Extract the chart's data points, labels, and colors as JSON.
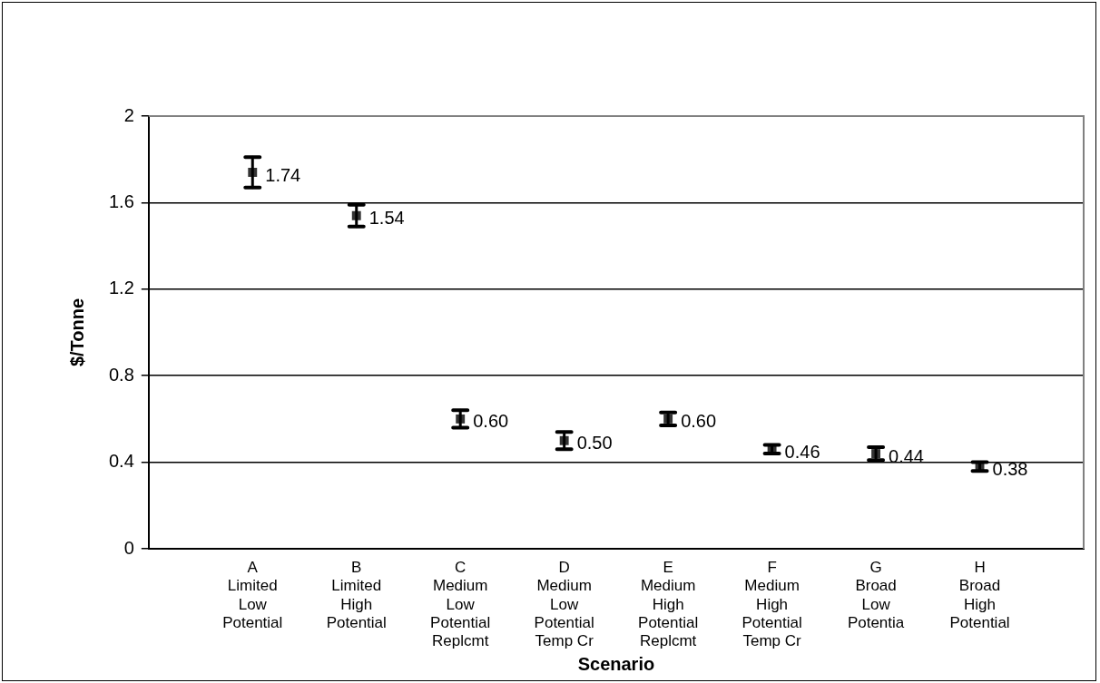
{
  "chart_data": {
    "type": "scatter",
    "xlabel": "Scenario",
    "ylabel": "$/Tonne",
    "categories": [
      "A\nLimited\nLow\nPotential",
      "B\nLimited\nHigh\nPotential",
      "C\nMedium\nLow\nPotential\nReplcmt",
      "D\nMedium\nLow\nPotential\nTemp Cr",
      "E\nMedium\nHigh\nPotential\nReplcmt",
      "F\nMedium\nHigh\nPotential\nTemp Cr",
      "G\nBroad\nLow\nPotentia",
      "H\nBroad\nHigh\nPotential"
    ],
    "values": [
      1.74,
      1.54,
      0.6,
      0.5,
      0.6,
      0.46,
      0.44,
      0.38
    ],
    "errors": [
      0.07,
      0.05,
      0.04,
      0.04,
      0.03,
      0.02,
      0.03,
      0.02
    ],
    "value_labels": [
      "1.74",
      "1.54",
      "0.60",
      "0.50",
      "0.60",
      "0.46",
      "0.44",
      "0.38"
    ],
    "color": "#333333",
    "marker": "square",
    "ylim": [
      0,
      2
    ],
    "yticks": [
      0,
      0.4,
      0.8,
      1.2,
      1.6,
      2
    ],
    "grid": "y",
    "legend": false
  }
}
